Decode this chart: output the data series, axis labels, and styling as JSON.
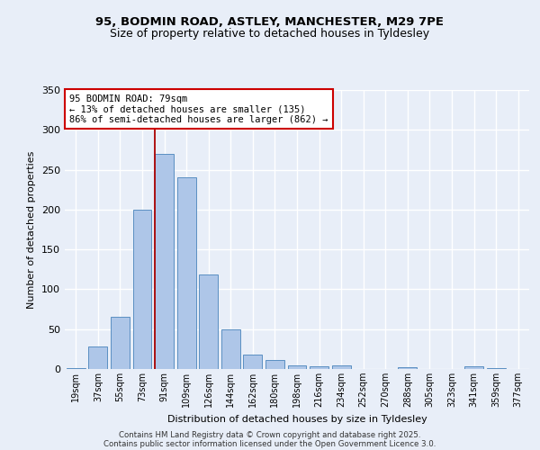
{
  "title_line1": "95, BODMIN ROAD, ASTLEY, MANCHESTER, M29 7PE",
  "title_line2": "Size of property relative to detached houses in Tyldesley",
  "xlabel": "Distribution of detached houses by size in Tyldesley",
  "ylabel": "Number of detached properties",
  "bar_labels": [
    "19sqm",
    "37sqm",
    "55sqm",
    "73sqm",
    "91sqm",
    "109sqm",
    "126sqm",
    "144sqm",
    "162sqm",
    "180sqm",
    "198sqm",
    "216sqm",
    "234sqm",
    "252sqm",
    "270sqm",
    "288sqm",
    "305sqm",
    "323sqm",
    "341sqm",
    "359sqm",
    "377sqm"
  ],
  "bar_values": [
    1,
    28,
    65,
    200,
    270,
    240,
    119,
    50,
    18,
    11,
    5,
    3,
    4,
    0,
    0,
    2,
    0,
    0,
    3,
    1,
    0
  ],
  "bar_color": "#aec6e8",
  "bar_edge_color": "#5a8fc2",
  "bg_color": "#e8eef8",
  "grid_color": "#ffffff",
  "vline_x": 4.0,
  "vline_color": "#aa0000",
  "annotation_text": "95 BODMIN ROAD: 79sqm\n← 13% of detached houses are smaller (135)\n86% of semi-detached houses are larger (862) →",
  "annotation_box_color": "#ffffff",
  "annotation_box_edge": "#cc0000",
  "ylim": [
    0,
    350
  ],
  "yticks": [
    0,
    50,
    100,
    150,
    200,
    250,
    300,
    350
  ],
  "footer_line1": "Contains HM Land Registry data © Crown copyright and database right 2025.",
  "footer_line2": "Contains public sector information licensed under the Open Government Licence 3.0."
}
